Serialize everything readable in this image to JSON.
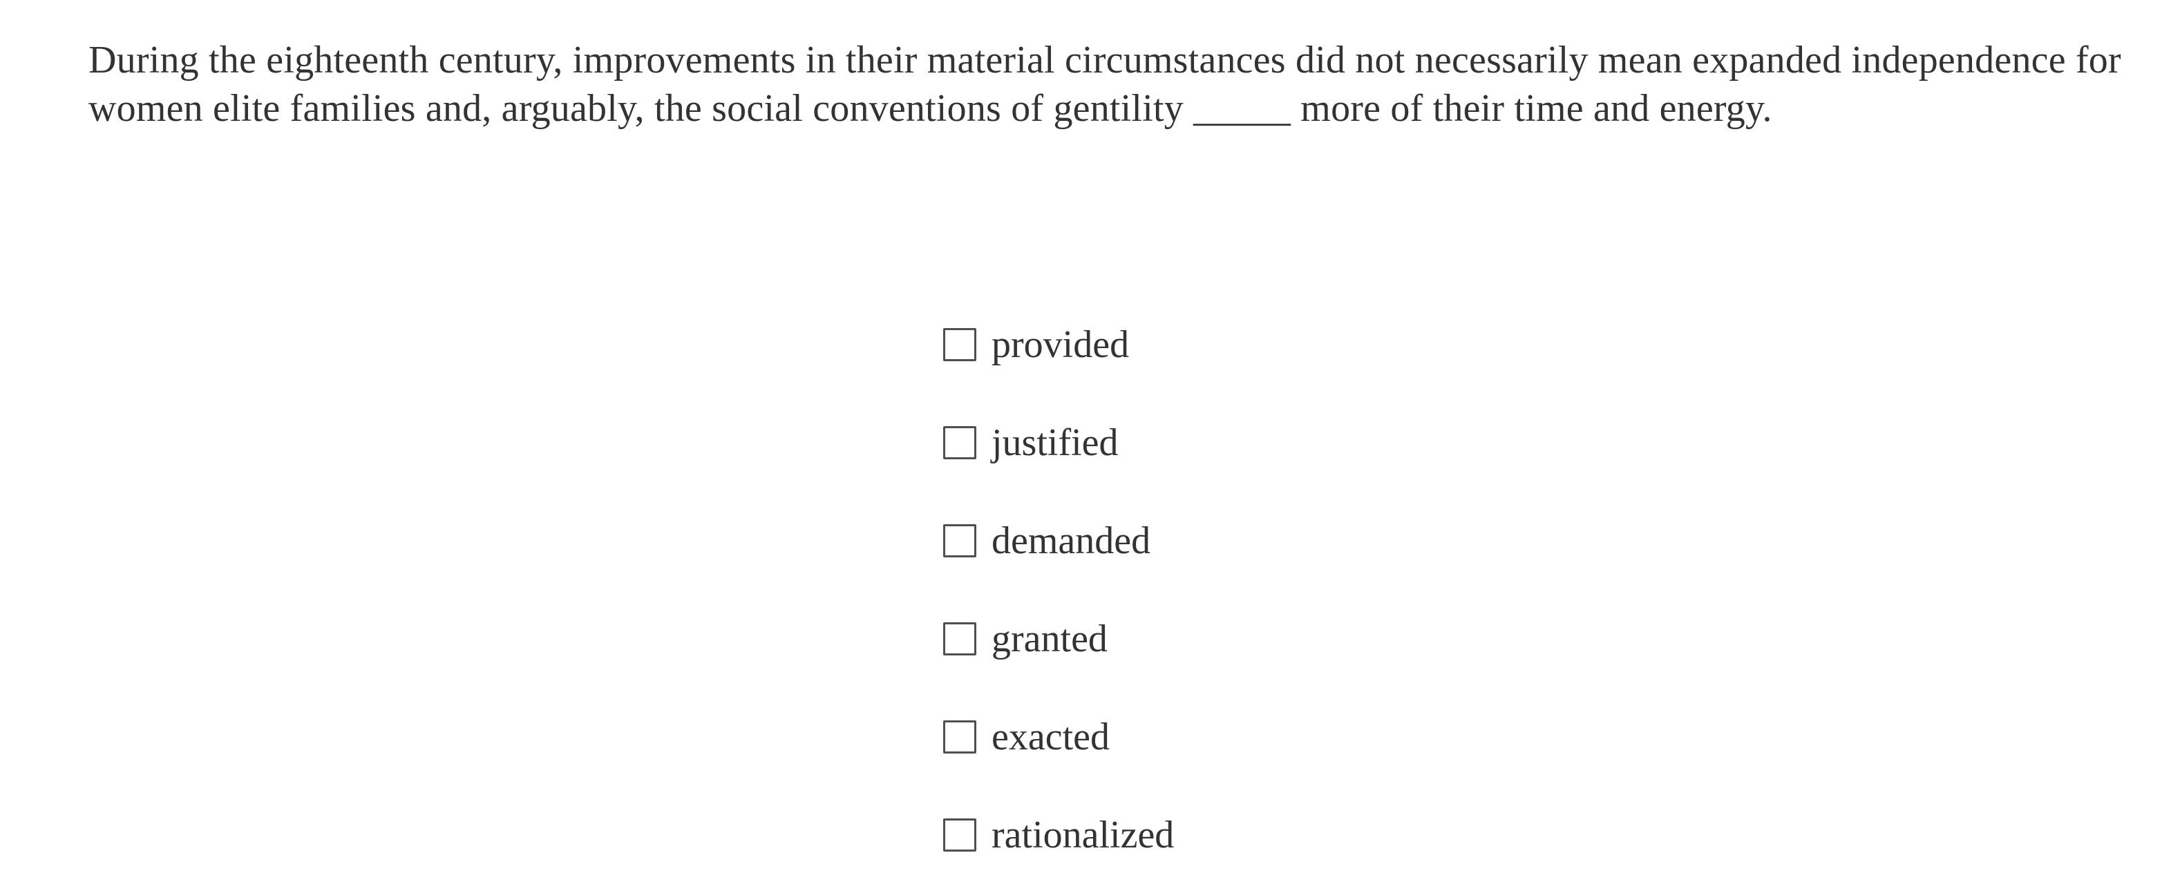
{
  "question": {
    "lines": [
      "During the eighteenth century, improvements in their material circumstances did not necessarily mean expanded independence for",
      "women elite families and, arguably, the social conventions of gentility _____ more of their time and energy."
    ]
  },
  "options": [
    {
      "label": "provided",
      "checked": false
    },
    {
      "label": "justified",
      "checked": false
    },
    {
      "label": "demanded",
      "checked": false
    },
    {
      "label": "granted",
      "checked": false
    },
    {
      "label": "exacted",
      "checked": false
    },
    {
      "label": "rationalized",
      "checked": false
    }
  ],
  "colors": {
    "background": "#ffffff",
    "text": "#333333",
    "checkbox_border": "#4f4f4f"
  }
}
